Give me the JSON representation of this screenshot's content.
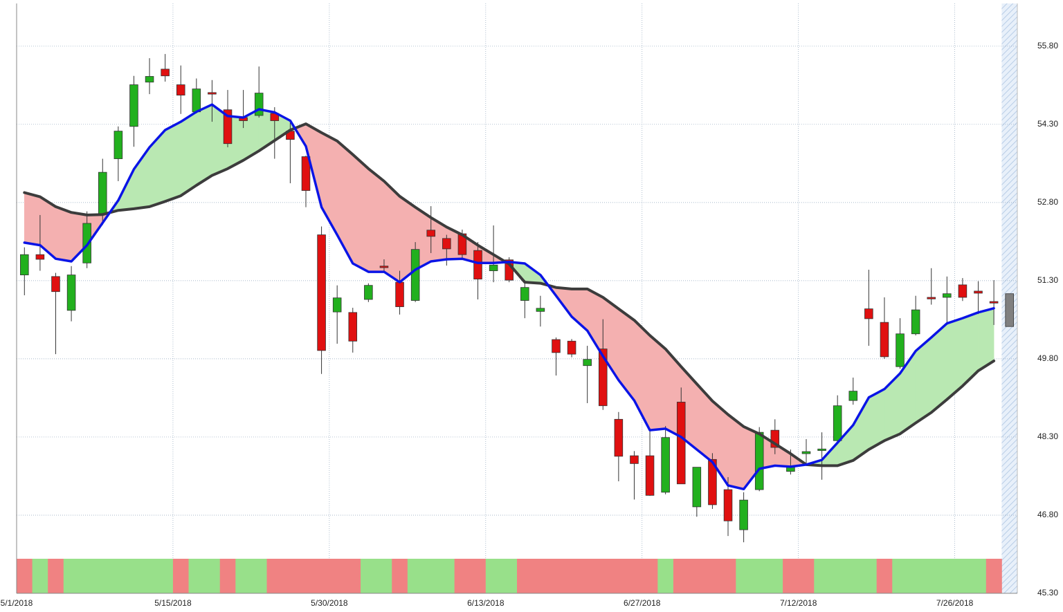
{
  "chart_data": {
    "type": "candlestick",
    "categories": [
      "5/1/2018",
      null,
      null,
      null,
      null,
      null,
      null,
      null,
      null,
      null,
      "5/15/2018",
      null,
      null,
      null,
      null,
      null,
      null,
      null,
      null,
      null,
      "5/30/2018",
      null,
      null,
      null,
      null,
      null,
      null,
      null,
      null,
      null,
      "6/13/2018",
      null,
      null,
      null,
      null,
      null,
      null,
      null,
      null,
      null,
      "6/27/2018",
      null,
      null,
      null,
      null,
      null,
      null,
      null,
      null,
      null,
      "7/12/2018",
      null,
      null,
      null,
      null,
      null,
      null,
      null,
      null,
      null,
      "7/26/2018",
      null,
      null,
      null
    ],
    "open": [
      51.41,
      51.8,
      51.38,
      50.73,
      51.64,
      52.57,
      53.64,
      54.26,
      55.11,
      55.36,
      55.06,
      54.54,
      54.91,
      54.58,
      54.43,
      54.47,
      54.51,
      54.17,
      53.68,
      52.18,
      50.7,
      50.69,
      50.94,
      51.58,
      51.27,
      50.92,
      52.27,
      52.11,
      52.2,
      51.88,
      51.49,
      51.7,
      50.92,
      50.71,
      50.17,
      50.14,
      49.67,
      49.99,
      48.64,
      47.94,
      47.94,
      47.24,
      48.97,
      46.96,
      47.87,
      47.29,
      46.52,
      47.29,
      48.43,
      47.64,
      47.98,
      48.04,
      48.23,
      49.0,
      50.76,
      50.5,
      49.65,
      50.28,
      50.98,
      50.98,
      51.22,
      51.1,
      50.9,
      51.05
    ],
    "high": [
      51.94,
      52.56,
      51.45,
      51.58,
      52.63,
      53.64,
      54.26,
      55.23,
      55.57,
      55.65,
      55.43,
      55.18,
      55.15,
      54.96,
      54.96,
      55.41,
      54.63,
      54.33,
      53.7,
      52.34,
      51.21,
      50.78,
      51.25,
      51.71,
      51.49,
      52.04,
      52.73,
      52.18,
      52.28,
      52.04,
      52.36,
      51.75,
      51.31,
      51.01,
      50.21,
      50.18,
      50.05,
      50.56,
      48.78,
      48.03,
      48.46,
      48.51,
      49.25,
      47.72,
      47.99,
      47.53,
      47.24,
      48.49,
      48.64,
      48.06,
      48.26,
      48.39,
      49.1,
      49.44,
      51.51,
      50.98,
      50.58,
      51.01,
      51.54,
      51.38,
      51.35,
      51.29,
      51.31,
      51.05
    ],
    "low": [
      51.02,
      51.49,
      49.89,
      50.52,
      51.54,
      52.37,
      53.21,
      53.87,
      54.88,
      55.12,
      54.5,
      54.51,
      54.35,
      53.86,
      54.23,
      54.43,
      53.64,
      53.17,
      52.71,
      49.51,
      50.09,
      49.92,
      50.89,
      51.49,
      50.65,
      50.89,
      51.83,
      51.59,
      51.74,
      50.94,
      51.27,
      51.27,
      50.58,
      50.42,
      49.48,
      49.83,
      48.95,
      48.82,
      47.45,
      47.1,
      47.17,
      47.2,
      47.4,
      46.77,
      46.92,
      46.4,
      46.28,
      47.26,
      47.97,
      47.58,
      47.8,
      47.48,
      48.19,
      48.92,
      50.05,
      49.8,
      49.61,
      50.25,
      50.84,
      50.45,
      50.91,
      50.66,
      50.45,
      50.42
    ],
    "close": [
      51.8,
      51.71,
      51.09,
      51.41,
      52.4,
      53.38,
      54.17,
      55.06,
      55.22,
      55.23,
      54.86,
      54.98,
      54.88,
      53.93,
      54.37,
      54.9,
      54.37,
      54.01,
      53.03,
      49.96,
      50.97,
      50.14,
      51.21,
      51.55,
      50.8,
      51.9,
      52.15,
      51.91,
      51.8,
      51.33,
      51.6,
      51.31,
      51.17,
      50.77,
      49.92,
      49.89,
      49.79,
      48.9,
      47.93,
      47.79,
      47.18,
      48.29,
      47.4,
      47.72,
      47.0,
      46.69,
      47.09,
      48.39,
      48.1,
      47.73,
      48.02,
      48.07,
      48.9,
      49.18,
      50.57,
      49.84,
      50.28,
      50.74,
      50.95,
      51.05,
      50.98,
      51.06,
      50.87,
      50.42
    ],
    "up_color": "#22b01e",
    "down_color": "#e01010",
    "last_color": "#808080",
    "series": [
      {
        "color": "#0a14e6",
        "values": [
          52.03,
          51.98,
          51.72,
          51.67,
          51.98,
          52.41,
          52.84,
          53.44,
          53.86,
          54.19,
          54.35,
          54.54,
          54.68,
          54.46,
          54.43,
          54.59,
          54.53,
          54.37,
          53.88,
          52.71,
          52.18,
          51.63,
          51.47,
          51.47,
          51.27,
          51.51,
          51.67,
          51.71,
          51.72,
          51.64,
          51.64,
          51.66,
          51.63,
          51.41,
          51.01,
          50.61,
          50.34,
          49.85,
          49.39,
          49.0,
          48.43,
          48.46,
          48.3,
          48.06,
          47.82,
          47.37,
          47.3,
          47.69,
          47.75,
          47.73,
          47.77,
          47.86,
          48.19,
          48.53,
          49.06,
          49.22,
          49.52,
          49.95,
          50.21,
          50.48,
          50.58,
          50.69,
          50.77,
          null
        ]
      },
      {
        "color": "#3c3c3c",
        "values": [
          52.99,
          52.91,
          52.72,
          52.61,
          52.56,
          52.57,
          52.65,
          52.68,
          52.72,
          52.82,
          52.93,
          53.13,
          53.32,
          53.45,
          53.61,
          53.79,
          53.99,
          54.19,
          54.31,
          54.14,
          53.98,
          53.72,
          53.45,
          53.21,
          52.92,
          52.71,
          52.51,
          52.33,
          52.18,
          51.98,
          51.8,
          51.62,
          51.27,
          51.25,
          51.17,
          51.14,
          51.14,
          50.98,
          50.76,
          50.54,
          50.25,
          49.99,
          49.65,
          49.32,
          48.99,
          48.73,
          48.5,
          48.36,
          48.17,
          47.98,
          47.77,
          47.75,
          47.75,
          47.85,
          48.06,
          48.23,
          48.36,
          48.57,
          48.77,
          49.02,
          49.28,
          49.57,
          49.76,
          null
        ]
      }
    ],
    "fill_up_color": "#b9e8b2",
    "fill_down_color": "#f4b0b0",
    "band": {
      "values": [
        -1,
        1,
        -1,
        1,
        1,
        1,
        1,
        1,
        1,
        1,
        -1,
        1,
        1,
        -1,
        1,
        1,
        -1,
        -1,
        -1,
        -1,
        -1,
        -1,
        1,
        1,
        -1,
        1,
        1,
        1,
        -1,
        -1,
        1,
        1,
        -1,
        -1,
        -1,
        -1,
        -1,
        -1,
        -1,
        -1,
        -1,
        1,
        -1,
        -1,
        -1,
        -1,
        1,
        1,
        1,
        -1,
        -1,
        1,
        1,
        1,
        1,
        -1,
        1,
        1,
        1,
        1,
        1,
        1,
        -1,
        null
      ],
      "up_color": "#98e08a",
      "down_color": "#f08282"
    },
    "ylim": [
      45.3,
      56.62
    ],
    "yticks": [
      {
        "value": 45.3,
        "label": "45.30"
      },
      {
        "value": 46.8,
        "label": "46.80"
      },
      {
        "value": 48.3,
        "label": "48.30"
      },
      {
        "value": 49.8,
        "label": "49.80"
      },
      {
        "value": 51.3,
        "label": "51.30"
      },
      {
        "value": 52.8,
        "label": "52.80"
      },
      {
        "value": 54.3,
        "label": "54.30"
      },
      {
        "value": 55.8,
        "label": "55.80"
      }
    ],
    "grid": true
  }
}
